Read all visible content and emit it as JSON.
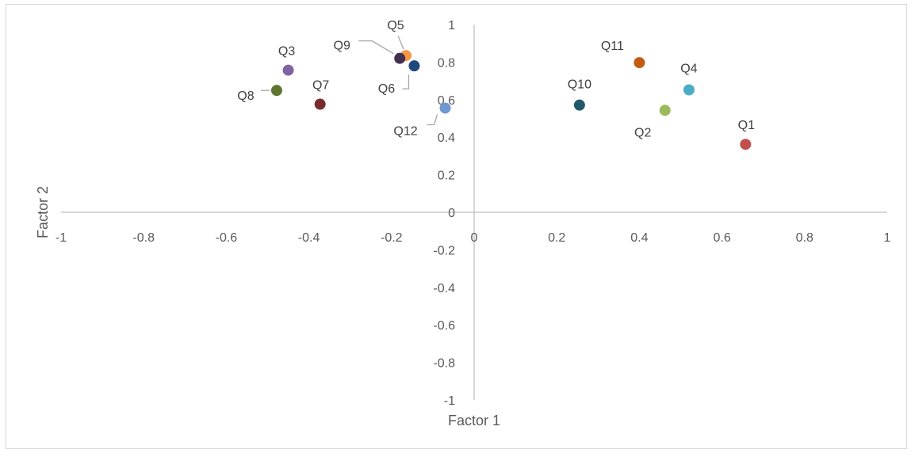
{
  "chart_data": {
    "type": "scatter",
    "title": "",
    "xlabel": "Factor 1",
    "ylabel": "Factor 2",
    "xlim": [
      -1,
      1
    ],
    "ylim": [
      -1,
      1
    ],
    "x_ticks": [
      "-1",
      "-0.8",
      "-0.6",
      "-0.4",
      "-0.2",
      "0",
      "0.2",
      "0.4",
      "0.6",
      "0.8",
      "1"
    ],
    "y_ticks": [
      "-1",
      "-0.8",
      "-0.6",
      "-0.4",
      "-0.2",
      "0",
      "0.2",
      "0.4",
      "0.6",
      "0.8",
      "1"
    ],
    "grid": false,
    "legend": "none",
    "points": [
      {
        "label": "Q1",
        "x": 0.657,
        "y": 0.362,
        "color": "#c0504d"
      },
      {
        "label": "Q2",
        "x": 0.462,
        "y": 0.543,
        "color": "#9bbb59"
      },
      {
        "label": "Q3",
        "x": -0.45,
        "y": 0.757,
        "color": "#8064a2"
      },
      {
        "label": "Q4",
        "x": 0.52,
        "y": 0.652,
        "color": "#4bacc6"
      },
      {
        "label": "Q5",
        "x": -0.165,
        "y": 0.835,
        "color": "#f79646"
      },
      {
        "label": "Q6",
        "x": -0.145,
        "y": 0.78,
        "color": "#1f497d"
      },
      {
        "label": "Q7",
        "x": -0.373,
        "y": 0.576,
        "color": "#772c2a"
      },
      {
        "label": "Q8",
        "x": -0.478,
        "y": 0.649,
        "color": "#5f7530"
      },
      {
        "label": "Q9",
        "x": -0.18,
        "y": 0.82,
        "color": "#403152"
      },
      {
        "label": "Q10",
        "x": 0.255,
        "y": 0.571,
        "color": "#215968"
      },
      {
        "label": "Q11",
        "x": 0.4,
        "y": 0.797,
        "color": "#c55a11"
      },
      {
        "label": "Q12",
        "x": -0.07,
        "y": 0.555,
        "color": "#6f97d1"
      }
    ]
  }
}
